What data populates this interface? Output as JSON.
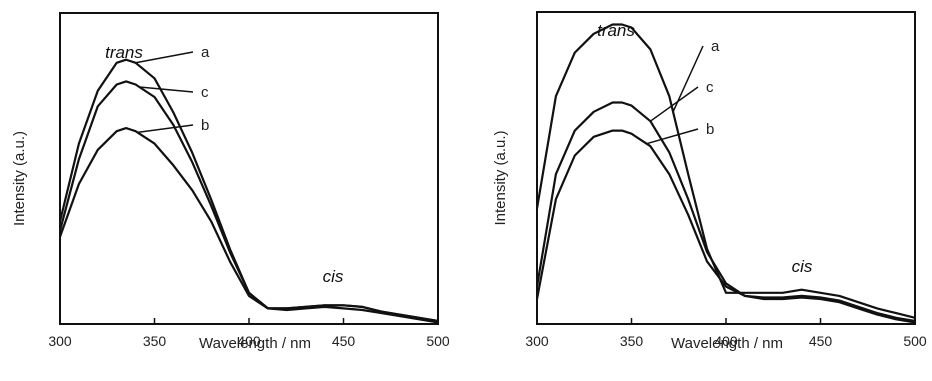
{
  "chart_data": [
    {
      "type": "line",
      "xlabel": "Wavelength / nm",
      "ylabel": "Intensity (a.u.)",
      "xlim": [
        300,
        500
      ],
      "ylim": [
        0,
        1
      ],
      "xticks": [
        "300",
        "350",
        "400",
        "450",
        "500"
      ],
      "grid": false,
      "annotations": [
        "trans",
        "cis"
      ],
      "series": [
        {
          "name": "a",
          "x": [
            300,
            310,
            320,
            330,
            335,
            340,
            350,
            360,
            370,
            380,
            390,
            400,
            410,
            420,
            430,
            440,
            450,
            460,
            470,
            480,
            490,
            500
          ],
          "values": [
            0.33,
            0.58,
            0.75,
            0.84,
            0.85,
            0.84,
            0.79,
            0.68,
            0.55,
            0.4,
            0.24,
            0.1,
            0.05,
            0.05,
            0.055,
            0.06,
            0.06,
            0.055,
            0.04,
            0.03,
            0.02,
            0.01
          ]
        },
        {
          "name": "b",
          "x": [
            300,
            310,
            320,
            330,
            335,
            340,
            350,
            360,
            370,
            380,
            390,
            400,
            410,
            420,
            430,
            440,
            450,
            460,
            470,
            480,
            490,
            500
          ],
          "values": [
            0.28,
            0.45,
            0.56,
            0.62,
            0.63,
            0.62,
            0.58,
            0.51,
            0.43,
            0.33,
            0.2,
            0.09,
            0.05,
            0.045,
            0.05,
            0.055,
            0.05,
            0.045,
            0.035,
            0.025,
            0.015,
            0.005
          ]
        },
        {
          "name": "c",
          "x": [
            300,
            310,
            320,
            330,
            335,
            340,
            350,
            360,
            370,
            380,
            390,
            400,
            410,
            420,
            430,
            440,
            450,
            460,
            470,
            480,
            490,
            500
          ],
          "values": [
            0.3,
            0.53,
            0.7,
            0.77,
            0.78,
            0.77,
            0.73,
            0.64,
            0.52,
            0.38,
            0.23,
            0.1,
            0.05,
            0.05,
            0.055,
            0.06,
            0.06,
            0.055,
            0.04,
            0.03,
            0.02,
            0.01
          ]
        }
      ]
    },
    {
      "type": "line",
      "xlabel": "Wavelength / nm",
      "ylabel": "Intensity (a.u.)",
      "xlim": [
        300,
        500
      ],
      "ylim": [
        0,
        1
      ],
      "xticks": [
        "300",
        "350",
        "400",
        "450",
        "500"
      ],
      "grid": false,
      "annotations": [
        "trans",
        "cis"
      ],
      "series": [
        {
          "name": "a",
          "x": [
            300,
            310,
            320,
            330,
            340,
            345,
            350,
            360,
            370,
            380,
            390,
            400,
            410,
            420,
            430,
            440,
            450,
            460,
            470,
            480,
            490,
            500
          ],
          "values": [
            0.37,
            0.73,
            0.87,
            0.93,
            0.96,
            0.96,
            0.95,
            0.88,
            0.73,
            0.48,
            0.24,
            0.1,
            0.1,
            0.1,
            0.1,
            0.11,
            0.1,
            0.09,
            0.07,
            0.05,
            0.035,
            0.02
          ]
        },
        {
          "name": "b",
          "x": [
            300,
            310,
            320,
            330,
            340,
            345,
            350,
            360,
            370,
            380,
            390,
            400,
            410,
            420,
            430,
            440,
            450,
            460,
            470,
            480,
            490,
            500
          ],
          "values": [
            0.08,
            0.4,
            0.54,
            0.6,
            0.62,
            0.62,
            0.61,
            0.57,
            0.48,
            0.35,
            0.2,
            0.12,
            0.09,
            0.08,
            0.08,
            0.085,
            0.08,
            0.07,
            0.05,
            0.03,
            0.015,
            0.005
          ]
        },
        {
          "name": "c",
          "x": [
            300,
            310,
            320,
            330,
            340,
            345,
            350,
            360,
            370,
            380,
            390,
            400,
            410,
            420,
            430,
            440,
            450,
            460,
            470,
            480,
            490,
            500
          ],
          "values": [
            0.12,
            0.48,
            0.62,
            0.68,
            0.71,
            0.71,
            0.7,
            0.65,
            0.55,
            0.4,
            0.23,
            0.13,
            0.09,
            0.085,
            0.085,
            0.09,
            0.085,
            0.075,
            0.055,
            0.035,
            0.02,
            0.01
          ]
        }
      ]
    }
  ]
}
